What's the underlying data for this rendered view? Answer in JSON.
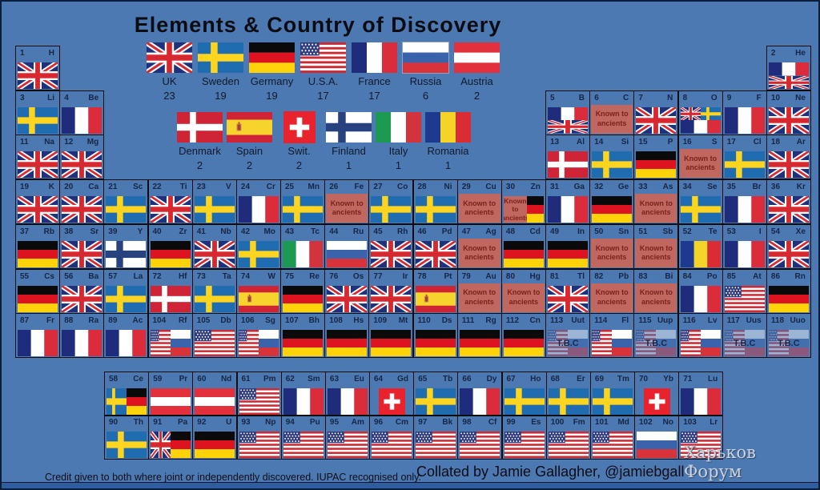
{
  "title": "Elements & Country of Discovery",
  "legend": {
    "row1": [
      {
        "country": "UK",
        "count": "23",
        "flag": "uk"
      },
      {
        "country": "Sweden",
        "count": "19",
        "flag": "sweden"
      },
      {
        "country": "Germany",
        "count": "19",
        "flag": "germany"
      },
      {
        "country": "U.S.A.",
        "count": "17",
        "flag": "usa"
      },
      {
        "country": "France",
        "count": "17",
        "flag": "france"
      },
      {
        "country": "Russia",
        "count": "6",
        "flag": "russia"
      },
      {
        "country": "Austria",
        "count": "2",
        "flag": "austria"
      }
    ],
    "row2": [
      {
        "country": "Denmark",
        "count": "2",
        "flag": "denmark"
      },
      {
        "country": "Spain",
        "count": "2",
        "flag": "spain"
      },
      {
        "country": "Swit.",
        "count": "2",
        "flag": "swiss"
      },
      {
        "country": "Finland",
        "count": "1",
        "flag": "finland"
      },
      {
        "country": "Italy",
        "count": "1",
        "flag": "italy"
      },
      {
        "country": "Romania",
        "count": "1",
        "flag": "romania"
      }
    ]
  },
  "labels": {
    "ancients": "Known to ancients",
    "tbc": "T.B.C"
  },
  "footer": {
    "credit": "Credit given to both where joint or independently discovered. IUPAC recognised only.",
    "collated": "Collated by Jamie Gallagher, @jamiebgall"
  },
  "watermark": "Харьков Форум",
  "colors": {
    "background": "#4d79b2",
    "cell_border": "#0d0d0d",
    "ancients_bg": "#c0675f",
    "ancients_text": "#7c211c",
    "cell_text": "#152647"
  },
  "elements": [
    [
      1,
      "H",
      1,
      1,
      "1",
      "uk"
    ],
    [
      2,
      "He",
      18,
      1,
      "tb",
      "france",
      "uk"
    ],
    [
      3,
      "Li",
      1,
      2,
      "1",
      "sweden"
    ],
    [
      4,
      "Be",
      2,
      2,
      "1",
      "france"
    ],
    [
      5,
      "B",
      13,
      2,
      "tb",
      "france",
      "uk"
    ],
    [
      6,
      "C",
      14,
      2,
      "anc"
    ],
    [
      7,
      "N",
      15,
      2,
      "1",
      "uk"
    ],
    [
      8,
      "O",
      16,
      2,
      "tri",
      "uk",
      "sweden",
      "france"
    ],
    [
      9,
      "F",
      17,
      2,
      "1",
      "france"
    ],
    [
      10,
      "Ne",
      18,
      2,
      "1",
      "uk"
    ],
    [
      11,
      "Na",
      1,
      3,
      "1",
      "uk"
    ],
    [
      12,
      "Mg",
      2,
      3,
      "1",
      "uk"
    ],
    [
      13,
      "Al",
      13,
      3,
      "1",
      "denmark"
    ],
    [
      14,
      "Si",
      14,
      3,
      "1",
      "sweden"
    ],
    [
      15,
      "P",
      15,
      3,
      "1",
      "germany"
    ],
    [
      16,
      "S",
      16,
      3,
      "anc"
    ],
    [
      17,
      "Cl",
      17,
      3,
      "1",
      "sweden"
    ],
    [
      18,
      "Ar",
      18,
      3,
      "1",
      "uk"
    ],
    [
      19,
      "K",
      1,
      4,
      "1",
      "uk"
    ],
    [
      20,
      "Ca",
      2,
      4,
      "1",
      "uk"
    ],
    [
      21,
      "Sc",
      3,
      4,
      "1",
      "sweden"
    ],
    [
      22,
      "Ti",
      4,
      4,
      "1",
      "uk"
    ],
    [
      23,
      "V",
      5,
      4,
      "1",
      "sweden"
    ],
    [
      24,
      "Cr",
      6,
      4,
      "1",
      "france"
    ],
    [
      25,
      "Mn",
      7,
      4,
      "1",
      "sweden"
    ],
    [
      26,
      "Fe",
      8,
      4,
      "anc"
    ],
    [
      27,
      "Co",
      9,
      4,
      "1",
      "sweden"
    ],
    [
      28,
      "Ni",
      10,
      4,
      "1",
      "sweden"
    ],
    [
      29,
      "Cu",
      11,
      4,
      "anc"
    ],
    [
      30,
      "Zn",
      12,
      4,
      "anclr",
      "germany"
    ],
    [
      31,
      "Ga",
      13,
      4,
      "1",
      "france"
    ],
    [
      32,
      "Ge",
      14,
      4,
      "1",
      "germany"
    ],
    [
      33,
      "As",
      15,
      4,
      "anc"
    ],
    [
      34,
      "Se",
      16,
      4,
      "1",
      "sweden"
    ],
    [
      35,
      "Br",
      17,
      4,
      "1",
      "france"
    ],
    [
      36,
      "Kr",
      18,
      4,
      "1",
      "uk"
    ],
    [
      37,
      "Rb",
      1,
      5,
      "1",
      "germany"
    ],
    [
      38,
      "Sr",
      2,
      5,
      "1",
      "uk"
    ],
    [
      39,
      "Y",
      3,
      5,
      "1",
      "finland"
    ],
    [
      40,
      "Zr",
      4,
      5,
      "1",
      "germany"
    ],
    [
      41,
      "Nb",
      5,
      5,
      "1",
      "uk"
    ],
    [
      42,
      "Mo",
      6,
      5,
      "1",
      "sweden"
    ],
    [
      43,
      "Tc",
      7,
      5,
      "1",
      "italy"
    ],
    [
      44,
      "Ru",
      8,
      5,
      "1",
      "russia"
    ],
    [
      45,
      "Rh",
      9,
      5,
      "1",
      "uk"
    ],
    [
      46,
      "Pd",
      10,
      5,
      "1",
      "uk"
    ],
    [
      47,
      "Ag",
      11,
      5,
      "anc"
    ],
    [
      48,
      "Cd",
      12,
      5,
      "1",
      "germany"
    ],
    [
      49,
      "In",
      13,
      5,
      "1",
      "germany"
    ],
    [
      50,
      "Sn",
      14,
      5,
      "anc"
    ],
    [
      51,
      "Sb",
      15,
      5,
      "anc"
    ],
    [
      52,
      "Te",
      16,
      5,
      "1",
      "romania"
    ],
    [
      53,
      "I",
      17,
      5,
      "1",
      "france"
    ],
    [
      54,
      "Xe",
      18,
      5,
      "1",
      "uk"
    ],
    [
      55,
      "Cs",
      1,
      6,
      "1",
      "germany"
    ],
    [
      56,
      "Ba",
      2,
      6,
      "1",
      "uk"
    ],
    [
      57,
      "La",
      3,
      6,
      "1",
      "sweden"
    ],
    [
      72,
      "Hf",
      4,
      6,
      "1",
      "denmark"
    ],
    [
      73,
      "Ta",
      5,
      6,
      "1",
      "sweden"
    ],
    [
      74,
      "W",
      6,
      6,
      "1",
      "spain"
    ],
    [
      75,
      "Re",
      7,
      6,
      "1",
      "germany"
    ],
    [
      76,
      "Os",
      8,
      6,
      "1",
      "uk"
    ],
    [
      77,
      "Ir",
      9,
      6,
      "1",
      "uk"
    ],
    [
      78,
      "Pt",
      10,
      6,
      "1",
      "spain"
    ],
    [
      79,
      "Au",
      11,
      6,
      "anc"
    ],
    [
      80,
      "Hg",
      12,
      6,
      "anc"
    ],
    [
      81,
      "Tl",
      13,
      6,
      "1",
      "uk"
    ],
    [
      82,
      "Pb",
      14,
      6,
      "anc"
    ],
    [
      83,
      "Bi",
      15,
      6,
      "anc"
    ],
    [
      84,
      "Po",
      16,
      6,
      "1",
      "france"
    ],
    [
      85,
      "At",
      17,
      6,
      "1",
      "usa"
    ],
    [
      86,
      "Rn",
      18,
      6,
      "1",
      "germany"
    ],
    [
      87,
      "Fr",
      1,
      7,
      "1",
      "france"
    ],
    [
      88,
      "Ra",
      2,
      7,
      "1",
      "france"
    ],
    [
      89,
      "Ac",
      3,
      7,
      "1",
      "france"
    ],
    [
      104,
      "Rf",
      4,
      7,
      "lr",
      "usa",
      "russia"
    ],
    [
      105,
      "Db",
      5,
      7,
      "1",
      "usa"
    ],
    [
      106,
      "Sg",
      6,
      7,
      "lr",
      "usa",
      "russia"
    ],
    [
      107,
      "Bh",
      7,
      7,
      "1",
      "germany"
    ],
    [
      108,
      "Hs",
      8,
      7,
      "1",
      "germany"
    ],
    [
      109,
      "Mt",
      9,
      7,
      "1",
      "germany"
    ],
    [
      110,
      "Ds",
      10,
      7,
      "1",
      "germany"
    ],
    [
      111,
      "Rg",
      11,
      7,
      "1",
      "germany"
    ],
    [
      112,
      "Cn",
      12,
      7,
      "1",
      "germany"
    ],
    [
      113,
      "Uut",
      13,
      7,
      "tbc",
      "usa",
      "russia"
    ],
    [
      114,
      "Fl",
      14,
      7,
      "lr",
      "usa",
      "russia"
    ],
    [
      115,
      "Uup",
      15,
      7,
      "tbc",
      "usa",
      "russia"
    ],
    [
      116,
      "Lv",
      16,
      7,
      "lr",
      "usa",
      "russia"
    ],
    [
      117,
      "Uus",
      17,
      7,
      "tbc",
      "usa",
      "russia"
    ],
    [
      118,
      "Uuo",
      18,
      7,
      "tbc",
      "usa",
      "russia"
    ]
  ],
  "f_block": [
    [
      58,
      "Ce",
      1,
      1,
      "lr",
      "sweden",
      "germany"
    ],
    [
      59,
      "Pr",
      2,
      1,
      "1",
      "austria"
    ],
    [
      60,
      "Nd",
      3,
      1,
      "1",
      "austria"
    ],
    [
      61,
      "Pm",
      4,
      1,
      "1",
      "usa"
    ],
    [
      62,
      "Sm",
      5,
      1,
      "1",
      "france"
    ],
    [
      63,
      "Eu",
      6,
      1,
      "1",
      "france"
    ],
    [
      64,
      "Gd",
      7,
      1,
      "1",
      "swiss"
    ],
    [
      65,
      "Tb",
      8,
      1,
      "1",
      "sweden"
    ],
    [
      66,
      "Dy",
      9,
      1,
      "1",
      "france"
    ],
    [
      67,
      "Ho",
      10,
      1,
      "1",
      "sweden"
    ],
    [
      68,
      "Er",
      11,
      1,
      "1",
      "sweden"
    ],
    [
      69,
      "Tm",
      12,
      1,
      "1",
      "sweden"
    ],
    [
      70,
      "Yb",
      13,
      1,
      "1",
      "swiss"
    ],
    [
      71,
      "Lu",
      14,
      1,
      "1",
      "france"
    ],
    [
      90,
      "Th",
      1,
      2,
      "1",
      "sweden"
    ],
    [
      91,
      "Pa",
      2,
      2,
      "lr",
      "uk",
      "germany"
    ],
    [
      92,
      "U",
      3,
      2,
      "1",
      "germany"
    ],
    [
      93,
      "Np",
      4,
      2,
      "1",
      "usa"
    ],
    [
      94,
      "Pu",
      5,
      2,
      "1",
      "usa"
    ],
    [
      95,
      "Am",
      6,
      2,
      "1",
      "usa"
    ],
    [
      96,
      "Cm",
      7,
      2,
      "1",
      "usa"
    ],
    [
      97,
      "Bk",
      8,
      2,
      "1",
      "usa"
    ],
    [
      98,
      "Cf",
      9,
      2,
      "1",
      "usa"
    ],
    [
      99,
      "Es",
      10,
      2,
      "1",
      "usa"
    ],
    [
      100,
      "Fm",
      11,
      2,
      "1",
      "usa"
    ],
    [
      101,
      "Md",
      12,
      2,
      "1",
      "usa"
    ],
    [
      102,
      "No",
      13,
      2,
      "1",
      "russia"
    ],
    [
      103,
      "Lr",
      14,
      2,
      "1",
      "usa"
    ]
  ]
}
